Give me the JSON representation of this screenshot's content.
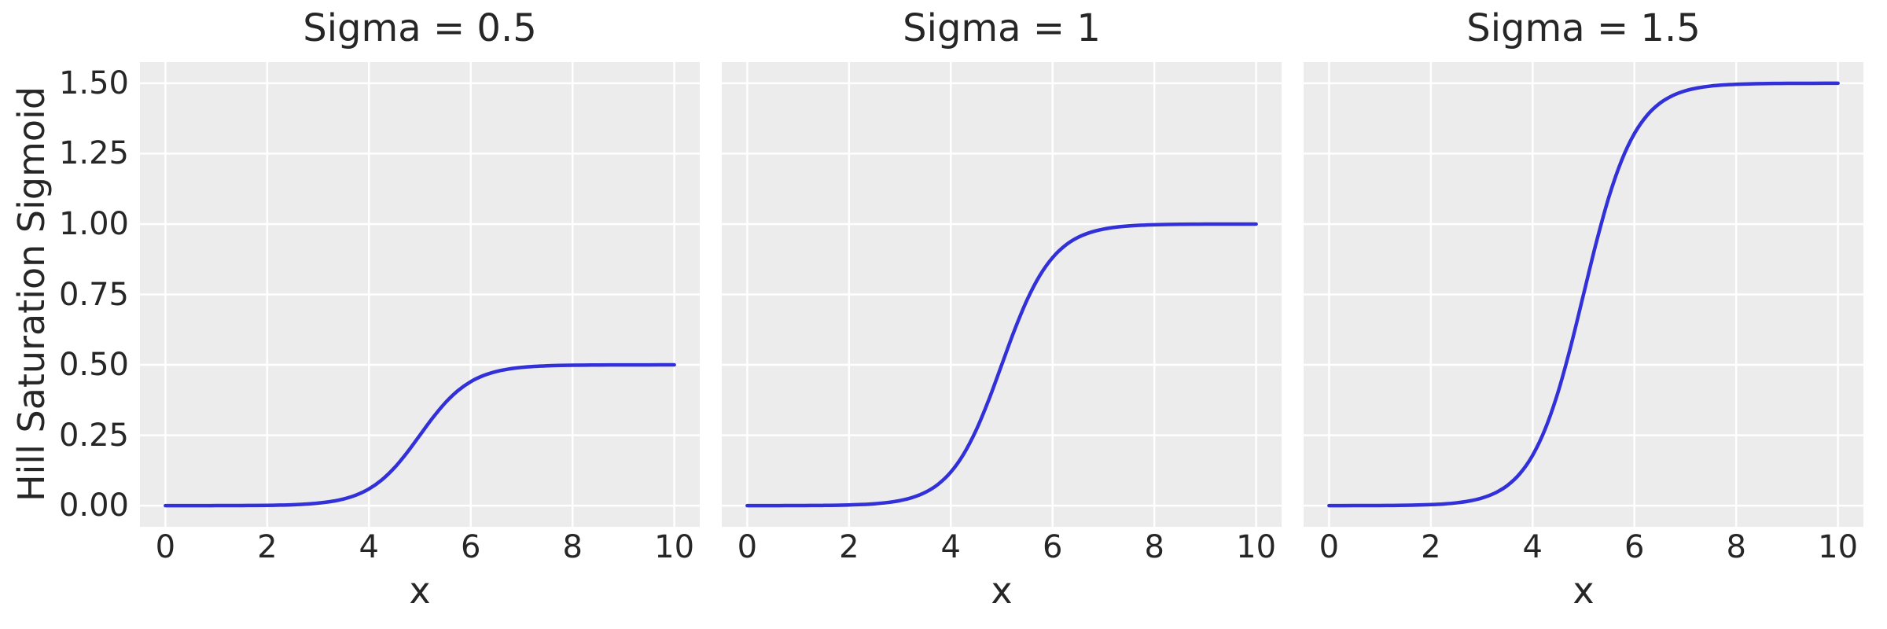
{
  "figure": {
    "background": "#ffffff",
    "axes_background": "#ececec",
    "grid_color": "#ffffff",
    "text_color": "#262626",
    "line_color": "#3230d8"
  },
  "chart_data": {
    "type": "line",
    "title": "",
    "xlabel": "x",
    "ylabel": "Hill Saturation Sigmoid",
    "grid": true,
    "legend": "none",
    "xlim": [
      -0.5,
      10.5
    ],
    "ylim": [
      -0.075,
      1.575
    ],
    "xticks": [
      0,
      2,
      4,
      6,
      8,
      10
    ],
    "xtick_labels": [
      "0",
      "2",
      "4",
      "6",
      "8",
      "10"
    ],
    "yticks": [
      0,
      0.25,
      0.5,
      0.75,
      1.0,
      1.25,
      1.5
    ],
    "ytick_labels": [
      "0.00",
      "0.25",
      "0.50",
      "0.75",
      "1.00",
      "1.25",
      "1.50"
    ],
    "x": [
      0,
      0.25,
      0.5,
      0.75,
      1,
      1.25,
      1.5,
      1.75,
      2,
      2.25,
      2.5,
      2.75,
      3,
      3.25,
      3.5,
      3.75,
      4,
      4.25,
      4.5,
      4.75,
      5,
      5.25,
      5.5,
      5.75,
      6,
      6.25,
      6.5,
      6.75,
      7,
      7.25,
      7.5,
      7.75,
      8,
      8.25,
      8.5,
      8.75,
      9,
      9.25,
      9.5,
      9.75,
      10
    ],
    "subplots": [
      {
        "title": "Sigma = 0.5",
        "sigma": 0.5,
        "values": [
          0.0,
          0.0,
          0.0001,
          0.0001,
          0.0002,
          0.0003,
          0.0005,
          0.0008,
          0.0012,
          0.002,
          0.0033,
          0.0055,
          0.009,
          0.0147,
          0.0237,
          0.0379,
          0.0596,
          0.0912,
          0.1345,
          0.1888,
          0.25,
          0.3112,
          0.3655,
          0.4088,
          0.4404,
          0.4621,
          0.4763,
          0.4853,
          0.491,
          0.4945,
          0.4967,
          0.498,
          0.4988,
          0.4992,
          0.4995,
          0.4997,
          0.4998,
          0.4999,
          0.4999,
          0.5,
          0.5
        ]
      },
      {
        "title": "Sigma = 1",
        "sigma": 1,
        "values": [
          0.0,
          0.0001,
          0.0001,
          0.0002,
          0.0003,
          0.0006,
          0.0009,
          0.0015,
          0.0025,
          0.0041,
          0.0067,
          0.011,
          0.018,
          0.0293,
          0.0474,
          0.0759,
          0.1192,
          0.1824,
          0.2689,
          0.3775,
          0.5,
          0.6225,
          0.7311,
          0.8176,
          0.8808,
          0.9241,
          0.9526,
          0.9707,
          0.982,
          0.989,
          0.9933,
          0.9959,
          0.9975,
          0.9985,
          0.9991,
          0.9994,
          0.9997,
          0.9998,
          0.9999,
          0.9999,
          1.0
        ]
      },
      {
        "title": "Sigma = 1.5",
        "sigma": 1.5,
        "values": [
          0.0001,
          0.0001,
          0.0002,
          0.0003,
          0.0005,
          0.0008,
          0.0014,
          0.0023,
          0.0037,
          0.0061,
          0.01,
          0.0165,
          0.027,
          0.044,
          0.0711,
          0.1138,
          0.1788,
          0.2736,
          0.4034,
          0.5663,
          0.75,
          0.9337,
          1.0966,
          1.2264,
          1.3212,
          1.3862,
          1.4289,
          1.456,
          1.473,
          1.4835,
          1.49,
          1.4939,
          1.4963,
          1.4977,
          1.4986,
          1.4992,
          1.4995,
          1.4997,
          1.4998,
          1.4999,
          1.5
        ]
      }
    ]
  }
}
